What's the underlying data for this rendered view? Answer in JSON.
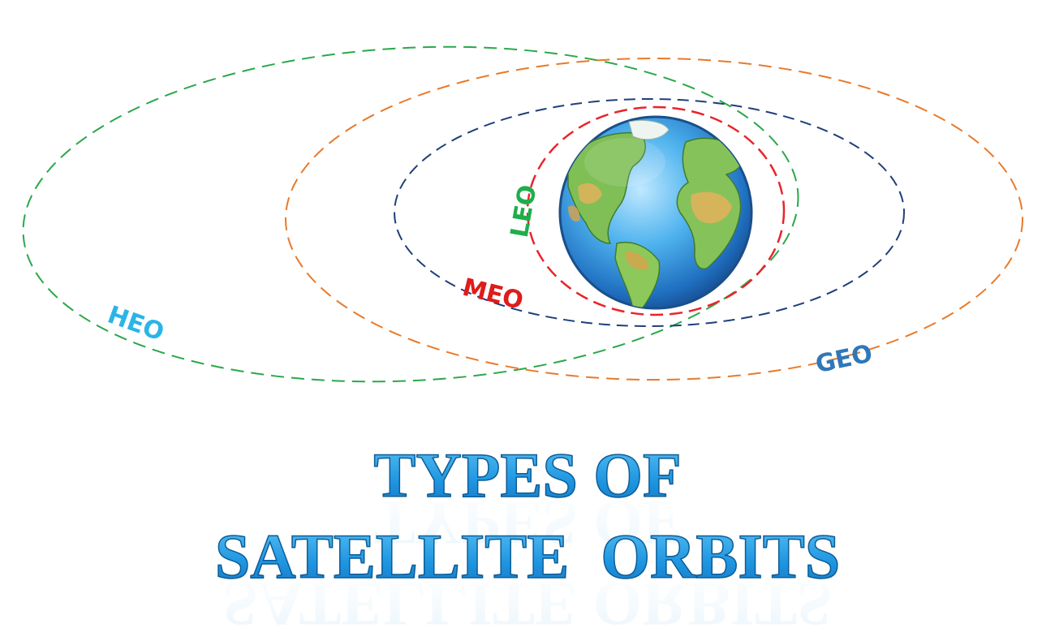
{
  "orbits": {
    "leo": {
      "label": "LEO",
      "color": "#e8242b"
    },
    "meo": {
      "label": "MEO",
      "color": "#1f3f7a"
    },
    "geo": {
      "label": "GEO",
      "color": "#e87a2a"
    },
    "heo": {
      "label": "HEO",
      "color": "#2aa84a"
    }
  },
  "labels": {
    "leo": {
      "text": "LEO",
      "color": "#1fae4b"
    },
    "meo": {
      "text": "MEO",
      "color": "#e01b1b"
    },
    "geo": {
      "text": "GEO",
      "color": "#2f78b8"
    },
    "heo": {
      "text": "HEO",
      "color": "#2bb5e6"
    }
  },
  "title": {
    "line1": "TYPES OF",
    "line2": "SATELLITE  ORBITS",
    "color": "#2aa3e6",
    "outline_color": "#0d5c96"
  },
  "earth": {
    "icon": "earth-globe-icon"
  }
}
